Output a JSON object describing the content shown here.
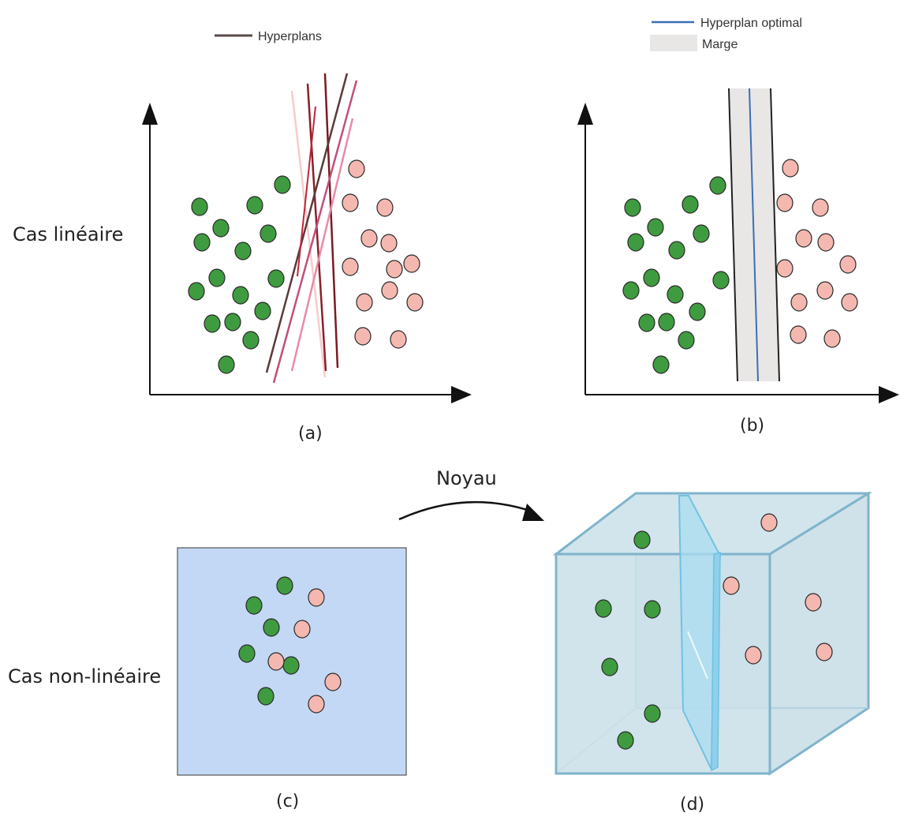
{
  "labels": {
    "linear_case": "Cas linéaire",
    "nonlinear_case": "Cas non-linéaire",
    "kernel": "Noyau",
    "panel_a": "(a)",
    "panel_b": "(b)",
    "panel_c": "(c)",
    "panel_d": "(d)"
  },
  "legends": {
    "hyperplanes": "Hyperplans",
    "optimal_hyperplane": "Hyperplan optimal",
    "margin": "Marge"
  },
  "colors": {
    "class_a_fill": "#3f9b3f",
    "class_b_fill": "#f4b8b0",
    "point_stroke": "#2a2a2a",
    "axis": "#111111",
    "optimal_line": "#3b6fb6",
    "margin_fill": "#e9e6e6",
    "input_space_fill": "#c3d8f5",
    "cube_fill": "#cfe3ea",
    "cube_edge": "#7fb4cc",
    "separating_plane": "#a9dcf0"
  },
  "hyperplane_colors": [
    "#f6cccc",
    "#8b1f2b",
    "#c0243a",
    "#5a3a3a",
    "#c0507a",
    "#e88aa8"
  ],
  "icons": [
    "axis-arrow-icon",
    "curved-arrow-icon"
  ]
}
